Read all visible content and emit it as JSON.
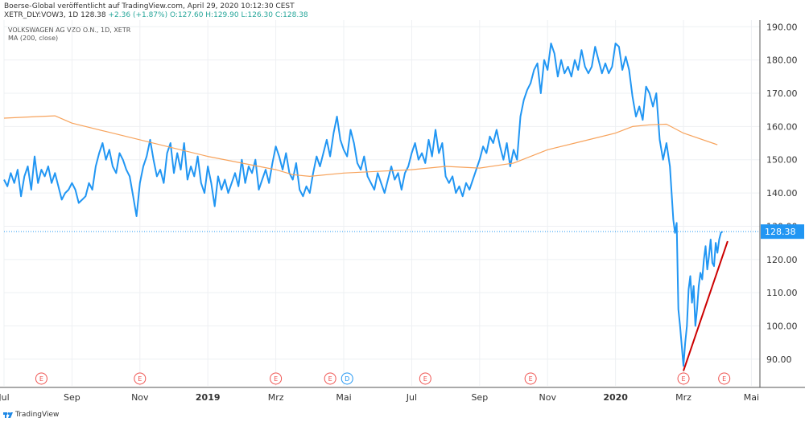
{
  "header": {
    "line1": "Boerse-Global veröffentlicht auf TradingView.com, April 29, 2020 10:12:30 CEST",
    "symbol_prefix": "XETR_DLY:VOW3, 1D 128.38",
    "change": "+2.36 (+1.87%)",
    "ohlc": "O:127.60 H:129.90 L:126.30 C:128.38"
  },
  "legend": {
    "series_title": "VOLKSWAGEN AG VZO O.N., 1D, XETR",
    "ma_title": "MA (200, close)"
  },
  "footer": {
    "brand": "TradingView"
  },
  "chart_data": {
    "type": "line",
    "y_axis": {
      "side": "right",
      "ylim": [
        82,
        192
      ],
      "ticks": [
        90,
        100,
        110,
        120,
        130,
        140,
        150,
        160,
        170,
        180,
        190
      ]
    },
    "x_axis": {
      "ticks": [
        {
          "label": "Jul",
          "x": 0
        },
        {
          "label": "Sep",
          "x": 2
        },
        {
          "label": "Nov",
          "x": 4
        },
        {
          "label": "2019",
          "x": 6,
          "bold": true
        },
        {
          "label": "Mrz",
          "x": 8
        },
        {
          "label": "Mai",
          "x": 10
        },
        {
          "label": "Jul",
          "x": 12
        },
        {
          "label": "Sep",
          "x": 14
        },
        {
          "label": "Nov",
          "x": 16
        },
        {
          "label": "2020",
          "x": 18,
          "bold": true
        },
        {
          "label": "Mrz",
          "x": 20
        },
        {
          "label": "Mai",
          "x": 22
        }
      ],
      "xlim": [
        0,
        22.25
      ]
    },
    "last_price": {
      "value": 128.38,
      "label": "128.38",
      "color": "#2196f3"
    },
    "series": [
      {
        "kind": "price",
        "color": "#2196f3",
        "points": [
          [
            0.0,
            144
          ],
          [
            0.1,
            142
          ],
          [
            0.2,
            146
          ],
          [
            0.3,
            143
          ],
          [
            0.4,
            147
          ],
          [
            0.5,
            139
          ],
          [
            0.6,
            145
          ],
          [
            0.7,
            148
          ],
          [
            0.8,
            141
          ],
          [
            0.9,
            151
          ],
          [
            1.0,
            143
          ],
          [
            1.1,
            147
          ],
          [
            1.2,
            145
          ],
          [
            1.3,
            148
          ],
          [
            1.4,
            143
          ],
          [
            1.5,
            146
          ],
          [
            1.6,
            142
          ],
          [
            1.7,
            138
          ],
          [
            1.8,
            140
          ],
          [
            1.9,
            141
          ],
          [
            2.0,
            143
          ],
          [
            2.1,
            141
          ],
          [
            2.2,
            137
          ],
          [
            2.3,
            138
          ],
          [
            2.4,
            139
          ],
          [
            2.5,
            143
          ],
          [
            2.6,
            141
          ],
          [
            2.7,
            148
          ],
          [
            2.8,
            152
          ],
          [
            2.9,
            155
          ],
          [
            3.0,
            150
          ],
          [
            3.1,
            153
          ],
          [
            3.2,
            148
          ],
          [
            3.3,
            146
          ],
          [
            3.4,
            152
          ],
          [
            3.5,
            150
          ],
          [
            3.6,
            147
          ],
          [
            3.7,
            145
          ],
          [
            3.8,
            139
          ],
          [
            3.9,
            133
          ],
          [
            4.0,
            143
          ],
          [
            4.1,
            148
          ],
          [
            4.2,
            151
          ],
          [
            4.3,
            156
          ],
          [
            4.4,
            150
          ],
          [
            4.5,
            145
          ],
          [
            4.6,
            147
          ],
          [
            4.7,
            143
          ],
          [
            4.8,
            152
          ],
          [
            4.9,
            155
          ],
          [
            5.0,
            146
          ],
          [
            5.1,
            152
          ],
          [
            5.2,
            147
          ],
          [
            5.3,
            155
          ],
          [
            5.4,
            144
          ],
          [
            5.5,
            148
          ],
          [
            5.6,
            145
          ],
          [
            5.7,
            151
          ],
          [
            5.8,
            143
          ],
          [
            5.9,
            140
          ],
          [
            6.0,
            148
          ],
          [
            6.1,
            143
          ],
          [
            6.2,
            136
          ],
          [
            6.3,
            145
          ],
          [
            6.4,
            141
          ],
          [
            6.5,
            144
          ],
          [
            6.6,
            140
          ],
          [
            6.7,
            143
          ],
          [
            6.8,
            146
          ],
          [
            6.9,
            142
          ],
          [
            7.0,
            150
          ],
          [
            7.1,
            143
          ],
          [
            7.2,
            148
          ],
          [
            7.3,
            146
          ],
          [
            7.4,
            150
          ],
          [
            7.5,
            141
          ],
          [
            7.6,
            144
          ],
          [
            7.7,
            147
          ],
          [
            7.8,
            143
          ],
          [
            7.9,
            149
          ],
          [
            8.0,
            154
          ],
          [
            8.1,
            151
          ],
          [
            8.2,
            147
          ],
          [
            8.3,
            152
          ],
          [
            8.4,
            146
          ],
          [
            8.5,
            144
          ],
          [
            8.6,
            149
          ],
          [
            8.7,
            141
          ],
          [
            8.8,
            139
          ],
          [
            8.9,
            142
          ],
          [
            9.0,
            140
          ],
          [
            9.1,
            146
          ],
          [
            9.2,
            151
          ],
          [
            9.3,
            148
          ],
          [
            9.4,
            152
          ],
          [
            9.5,
            156
          ],
          [
            9.6,
            151
          ],
          [
            9.7,
            158
          ],
          [
            9.8,
            163
          ],
          [
            9.9,
            156
          ],
          [
            10.0,
            153
          ],
          [
            10.1,
            151
          ],
          [
            10.2,
            159
          ],
          [
            10.3,
            155
          ],
          [
            10.4,
            149
          ],
          [
            10.5,
            147
          ],
          [
            10.6,
            151
          ],
          [
            10.7,
            145
          ],
          [
            10.8,
            143
          ],
          [
            10.9,
            141
          ],
          [
            11.0,
            146
          ],
          [
            11.1,
            143
          ],
          [
            11.2,
            140
          ],
          [
            11.3,
            144
          ],
          [
            11.4,
            148
          ],
          [
            11.5,
            144
          ],
          [
            11.6,
            146
          ],
          [
            11.7,
            141
          ],
          [
            11.8,
            146
          ],
          [
            11.9,
            148
          ],
          [
            12.0,
            152
          ],
          [
            12.1,
            155
          ],
          [
            12.2,
            150
          ],
          [
            12.3,
            152
          ],
          [
            12.4,
            149
          ],
          [
            12.5,
            156
          ],
          [
            12.6,
            151
          ],
          [
            12.7,
            159
          ],
          [
            12.8,
            152
          ],
          [
            12.9,
            155
          ],
          [
            13.0,
            145
          ],
          [
            13.1,
            143
          ],
          [
            13.2,
            145
          ],
          [
            13.3,
            140
          ],
          [
            13.4,
            142
          ],
          [
            13.5,
            139
          ],
          [
            13.6,
            143
          ],
          [
            13.7,
            141
          ],
          [
            13.8,
            144
          ],
          [
            13.9,
            147
          ],
          [
            14.0,
            150
          ],
          [
            14.1,
            154
          ],
          [
            14.2,
            152
          ],
          [
            14.3,
            157
          ],
          [
            14.4,
            155
          ],
          [
            14.5,
            159
          ],
          [
            14.6,
            154
          ],
          [
            14.7,
            150
          ],
          [
            14.8,
            155
          ],
          [
            14.9,
            148
          ],
          [
            15.0,
            153
          ],
          [
            15.1,
            150
          ],
          [
            15.2,
            163
          ],
          [
            15.3,
            168
          ],
          [
            15.4,
            171
          ],
          [
            15.5,
            173
          ],
          [
            15.6,
            177
          ],
          [
            15.7,
            179
          ],
          [
            15.8,
            170
          ],
          [
            15.9,
            180
          ],
          [
            16.0,
            177
          ],
          [
            16.1,
            185
          ],
          [
            16.2,
            182
          ],
          [
            16.3,
            175
          ],
          [
            16.4,
            180
          ],
          [
            16.5,
            176
          ],
          [
            16.6,
            178
          ],
          [
            16.7,
            175
          ],
          [
            16.8,
            180
          ],
          [
            16.9,
            177
          ],
          [
            17.0,
            183
          ],
          [
            17.1,
            178
          ],
          [
            17.2,
            176
          ],
          [
            17.3,
            178
          ],
          [
            17.4,
            184
          ],
          [
            17.5,
            180
          ],
          [
            17.6,
            176
          ],
          [
            17.7,
            179
          ],
          [
            17.8,
            176
          ],
          [
            17.9,
            178
          ],
          [
            18.0,
            185
          ],
          [
            18.1,
            184
          ],
          [
            18.2,
            177
          ],
          [
            18.3,
            181
          ],
          [
            18.4,
            177
          ],
          [
            18.5,
            169
          ],
          [
            18.6,
            163
          ],
          [
            18.7,
            166
          ],
          [
            18.8,
            162
          ],
          [
            18.9,
            172
          ],
          [
            19.0,
            170
          ],
          [
            19.1,
            166
          ],
          [
            19.2,
            170
          ],
          [
            19.3,
            156
          ],
          [
            19.4,
            150
          ],
          [
            19.5,
            155
          ],
          [
            19.6,
            148
          ],
          [
            19.65,
            140
          ],
          [
            19.7,
            132
          ],
          [
            19.75,
            128
          ],
          [
            19.8,
            131
          ],
          [
            19.85,
            105
          ],
          [
            19.9,
            100
          ],
          [
            19.95,
            94
          ],
          [
            20.0,
            88
          ],
          [
            20.05,
            95
          ],
          [
            20.1,
            100
          ],
          [
            20.15,
            111
          ],
          [
            20.2,
            115
          ],
          [
            20.25,
            107
          ],
          [
            20.3,
            112
          ],
          [
            20.35,
            100
          ],
          [
            20.4,
            105
          ],
          [
            20.45,
            112
          ],
          [
            20.5,
            116
          ],
          [
            20.55,
            114
          ],
          [
            20.6,
            120
          ],
          [
            20.65,
            124
          ],
          [
            20.7,
            117
          ],
          [
            20.75,
            121
          ],
          [
            20.8,
            126
          ],
          [
            20.85,
            119
          ],
          [
            20.9,
            118
          ],
          [
            20.95,
            125
          ],
          [
            21.0,
            122
          ],
          [
            21.05,
            126
          ],
          [
            21.1,
            128
          ],
          [
            21.15,
            128.4
          ]
        ]
      },
      {
        "kind": "moving_average",
        "color": "#f7a35c",
        "points": [
          [
            0,
            162.5
          ],
          [
            1,
            163
          ],
          [
            1.5,
            163.2
          ],
          [
            2,
            161
          ],
          [
            3,
            158.5
          ],
          [
            4,
            156
          ],
          [
            5,
            153.5
          ],
          [
            6,
            151
          ],
          [
            7,
            149
          ],
          [
            8,
            147
          ],
          [
            8.5,
            145.5
          ],
          [
            9,
            145
          ],
          [
            10,
            146
          ],
          [
            11,
            146.5
          ],
          [
            12,
            147
          ],
          [
            13,
            148
          ],
          [
            14,
            147.5
          ],
          [
            15,
            149
          ],
          [
            16,
            153
          ],
          [
            17,
            155.5
          ],
          [
            18,
            158
          ],
          [
            18.5,
            160
          ],
          [
            19,
            160.5
          ],
          [
            19.5,
            160.7
          ],
          [
            20,
            158
          ],
          [
            21,
            154.5
          ]
        ]
      },
      {
        "kind": "trendline",
        "color": "#cc0000",
        "points": [
          [
            20.0,
            86.5
          ],
          [
            21.3,
            125.5
          ]
        ]
      }
    ],
    "event_markers": [
      {
        "label": "E",
        "type": "earnings",
        "x": 1.1
      },
      {
        "label": "E",
        "type": "earnings",
        "x": 4.0
      },
      {
        "label": "E",
        "type": "earnings",
        "x": 8.0
      },
      {
        "label": "E",
        "type": "earnings",
        "x": 9.6
      },
      {
        "label": "D",
        "type": "dividend",
        "x": 10.1
      },
      {
        "label": "E",
        "type": "earnings",
        "x": 12.4
      },
      {
        "label": "E",
        "type": "earnings",
        "x": 15.5
      },
      {
        "label": "E",
        "type": "earnings",
        "x": 20.0
      },
      {
        "label": "E",
        "type": "earnings",
        "x": 21.2
      }
    ]
  }
}
